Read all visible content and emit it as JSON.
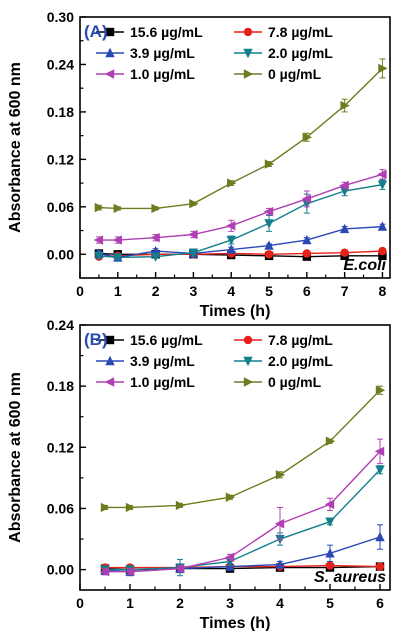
{
  "chart_data": [
    {
      "type": "line",
      "panel_label": "(A)",
      "organism": "E.coli",
      "xlabel": "Times (h)",
      "ylabel": "Absorbance at 600 nm",
      "xlim": [
        0,
        8.2
      ],
      "ylim": [
        -0.03,
        0.3
      ],
      "x_ticks": [
        "0",
        "1",
        "2",
        "3",
        "4",
        "5",
        "6",
        "7",
        "8"
      ],
      "y_ticks": [
        "0.00",
        "0.06",
        "0.12",
        "0.18",
        "0.24",
        "0.30"
      ],
      "x": [
        0.5,
        1,
        2,
        3,
        4,
        5,
        6,
        7,
        8
      ],
      "legend_position": "top",
      "series": [
        {
          "name": "15.6 µg/mL",
          "color": "#000000",
          "marker": "square",
          "values": [
            0.001,
            0.0,
            0.0,
            0.0,
            -0.001,
            -0.002,
            -0.003,
            -0.002,
            -0.002
          ],
          "errors": [
            0.003,
            0.002,
            0.002,
            0.002,
            0.002,
            0.002,
            0.002,
            0.002,
            0.002
          ]
        },
        {
          "name": "7.8 µg/mL",
          "color": "#e8201a",
          "marker": "circle",
          "values": [
            -0.003,
            -0.002,
            0.0,
            0.0,
            0.001,
            0.0,
            0.001,
            0.002,
            0.004
          ],
          "errors": [
            0.003,
            0.002,
            0.002,
            0.002,
            0.002,
            0.002,
            0.002,
            0.002,
            0.002
          ]
        },
        {
          "name": "3.9 µg/mL",
          "color": "#2a49b5",
          "marker": "triangle-up",
          "values": [
            0.001,
            -0.004,
            0.004,
            0.001,
            0.006,
            0.011,
            0.018,
            0.032,
            0.035
          ],
          "errors": [
            0.003,
            0.002,
            0.003,
            0.002,
            0.003,
            0.002,
            0.003,
            0.003,
            0.003
          ]
        },
        {
          "name": "2.0 µg/mL",
          "color": "#137f8c",
          "marker": "triangle-down",
          "values": [
            -0.002,
            -0.004,
            -0.003,
            0.002,
            0.018,
            0.039,
            0.064,
            0.08,
            0.088
          ],
          "errors": [
            0.003,
            0.002,
            0.002,
            0.003,
            0.005,
            0.01,
            0.012,
            0.006,
            0.006
          ]
        },
        {
          "name": "1.0 µg/mL",
          "color": "#b13fb4",
          "marker": "triangle-left",
          "values": [
            0.018,
            0.018,
            0.021,
            0.025,
            0.036,
            0.054,
            0.07,
            0.087,
            0.101
          ],
          "errors": [
            0.004,
            0.004,
            0.004,
            0.004,
            0.007,
            0.004,
            0.01,
            0.004,
            0.006
          ]
        },
        {
          "name": "0 µg/mL",
          "color": "#6b7d1e",
          "marker": "triangle-right",
          "values": [
            0.059,
            0.058,
            0.058,
            0.064,
            0.09,
            0.114,
            0.148,
            0.188,
            0.235
          ],
          "errors": [
            0.003,
            0.002,
            0.002,
            0.002,
            0.003,
            0.003,
            0.005,
            0.008,
            0.012
          ]
        }
      ]
    },
    {
      "type": "line",
      "panel_label": "(B)",
      "organism": "S. aureus",
      "xlabel": "Times (h)",
      "ylabel": "Absorbance at 600 nm",
      "xlim": [
        0,
        6.2
      ],
      "ylim": [
        -0.02,
        0.24
      ],
      "x_ticks": [
        "0",
        "1",
        "2",
        "3",
        "4",
        "5",
        "6"
      ],
      "y_ticks": [
        "0.00",
        "0.06",
        "0.12",
        "0.18",
        "0.24"
      ],
      "x": [
        0.5,
        1,
        2,
        3,
        4,
        5,
        6
      ],
      "legend_position": "top",
      "series": [
        {
          "name": "15.6 µg/mL",
          "color": "#000000",
          "marker": "square",
          "values": [
            0.001,
            0.0,
            0.001,
            0.001,
            0.002,
            0.002,
            0.003
          ],
          "errors": [
            0.002,
            0.002,
            0.002,
            0.002,
            0.002,
            0.002,
            0.002
          ]
        },
        {
          "name": "7.8 µg/mL",
          "color": "#e8201a",
          "marker": "circle",
          "values": [
            0.002,
            0.002,
            0.002,
            0.003,
            0.003,
            0.004,
            0.003
          ],
          "errors": [
            0.003,
            0.003,
            0.003,
            0.002,
            0.002,
            0.002,
            0.002
          ]
        },
        {
          "name": "3.9 µg/mL",
          "color": "#2a49b5",
          "marker": "triangle-up",
          "values": [
            -0.001,
            -0.002,
            0.001,
            0.003,
            0.005,
            0.016,
            0.032
          ],
          "errors": [
            0.004,
            0.004,
            0.004,
            0.003,
            0.003,
            0.008,
            0.012
          ]
        },
        {
          "name": "2.0 µg/mL",
          "color": "#137f8c",
          "marker": "triangle-down",
          "values": [
            0.0,
            0.0,
            0.002,
            0.008,
            0.03,
            0.047,
            0.098
          ],
          "errors": [
            0.003,
            0.003,
            0.008,
            0.004,
            0.006,
            0.003,
            0.004
          ]
        },
        {
          "name": "1.0 µg/mL",
          "color": "#b13fb4",
          "marker": "triangle-left",
          "values": [
            -0.002,
            -0.002,
            0.001,
            0.012,
            0.045,
            0.064,
            0.116
          ],
          "errors": [
            0.003,
            0.003,
            0.003,
            0.003,
            0.016,
            0.006,
            0.012
          ]
        },
        {
          "name": "0 µg/mL",
          "color": "#6b7d1e",
          "marker": "triangle-right",
          "values": [
            0.061,
            0.061,
            0.063,
            0.071,
            0.093,
            0.126,
            0.176
          ],
          "errors": [
            0.002,
            0.002,
            0.002,
            0.002,
            0.003,
            0.002,
            0.004
          ]
        }
      ]
    }
  ]
}
